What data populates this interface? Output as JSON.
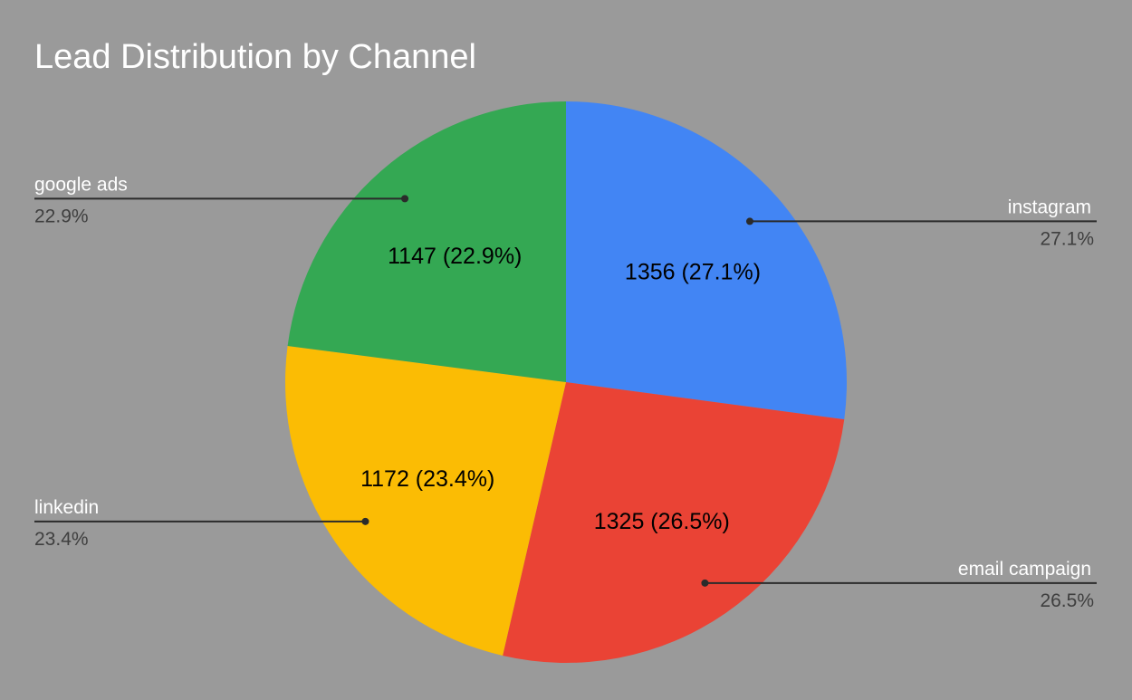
{
  "chart_data": {
    "type": "pie",
    "title": "Lead Distribution by Channel",
    "slices": [
      {
        "label": "instagram",
        "value": 1356,
        "percent": "27.1%",
        "slice_label": "1356 (27.1%)",
        "color": "#4285f4"
      },
      {
        "label": "email campaign",
        "value": 1325,
        "percent": "26.5%",
        "slice_label": "1325 (26.5%)",
        "color": "#ea4335"
      },
      {
        "label": "linkedin",
        "value": 1172,
        "percent": "23.4%",
        "slice_label": "1172 (23.4%)",
        "color": "#fbbc04"
      },
      {
        "label": "google ads",
        "value": 1147,
        "percent": "22.9%",
        "slice_label": "1147 (22.9%)",
        "color": "#34a853"
      }
    ],
    "start_angle_deg": 0,
    "direction": "clockwise",
    "legend": "callouts"
  }
}
